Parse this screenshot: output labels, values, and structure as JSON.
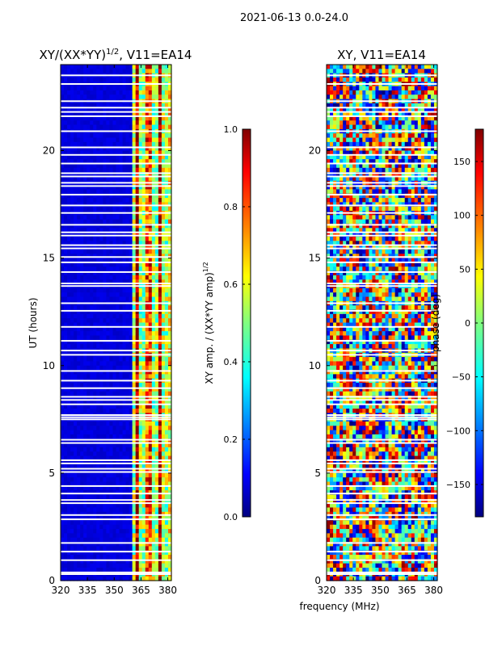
{
  "figure_title": "2021-06-13 0.0-24.0",
  "colors": {
    "background": "#ffffff",
    "jet": [
      "#000080",
      "#0000ff",
      "#0080ff",
      "#00ffff",
      "#80ff80",
      "#ffff00",
      "#ff8000",
      "#ff0000",
      "#800000"
    ],
    "gap": "#ffffff"
  },
  "chart_data": [
    {
      "type": "heatmap",
      "title": "XY/(XX*YY)^1/2, V11=EA14",
      "title_main": "XY/(XX*YY)",
      "title_sup": "1/2",
      "title_tail": ", V11=EA14",
      "xlabel": "",
      "ylabel": "UT (hours)",
      "xlim": [
        320,
        382
      ],
      "ylim": [
        0,
        24
      ],
      "xticks": [
        320,
        335,
        350,
        365,
        380
      ],
      "yticks": [
        0,
        5,
        10,
        15,
        20
      ],
      "colorbar": {
        "label": "XY amp. / (XX*YY amp)^1/2",
        "label_main": "XY amp. / (XX*YY amp)",
        "label_sup": "1/2",
        "range": [
          0.0,
          1.0
        ],
        "ticks": [
          "0.0",
          "0.2",
          "0.4",
          "0.6",
          "0.8",
          "1.0"
        ],
        "tick_values": [
          0.0,
          0.2,
          0.4,
          0.6,
          0.8,
          1.0
        ]
      },
      "description": "mostly low (~0.05) below 360 MHz; bright bands 360-382 MHz with values up to ~1.0"
    },
    {
      "type": "heatmap",
      "title": "XY, V11=EA14",
      "xlabel": "frequency (MHz)",
      "ylabel": "",
      "xlim": [
        320,
        382
      ],
      "ylim": [
        0,
        24
      ],
      "xticks": [
        320,
        335,
        350,
        365,
        380
      ],
      "yticks": [
        0,
        5,
        10,
        15,
        20
      ],
      "colorbar": {
        "label": "phase (deg)",
        "range": [
          -180,
          180
        ],
        "ticks": [
          "150",
          "100",
          "50",
          "0",
          "−50",
          "−100",
          "−150"
        ],
        "tick_values": [
          150,
          100,
          50,
          0,
          -50,
          -100,
          -150
        ]
      },
      "description": "phase varying across full range, noisy structure"
    }
  ],
  "gap_hours": [
    0.3,
    0.38,
    0.95,
    1.35,
    1.75,
    2.85,
    3.05,
    3.6,
    3.75,
    4.05,
    4.4,
    5.05,
    5.2,
    5.45,
    5.6,
    6.4,
    6.55,
    7.5,
    7.6,
    7.7,
    8.2,
    8.4,
    8.55,
    8.95,
    9.3,
    9.75,
    10.5,
    10.7,
    11.15,
    11.8,
    12.55,
    12.9,
    13.7,
    13.82,
    14.35,
    14.8,
    15.05,
    15.45,
    15.6,
    16.05,
    16.2,
    16.55,
    17.1,
    17.45,
    17.95,
    18.35,
    18.5,
    18.8,
    18.95,
    19.4,
    19.8,
    20.15,
    20.9,
    21.6,
    21.8,
    22.0,
    22.3,
    23.1,
    23.5
  ]
}
